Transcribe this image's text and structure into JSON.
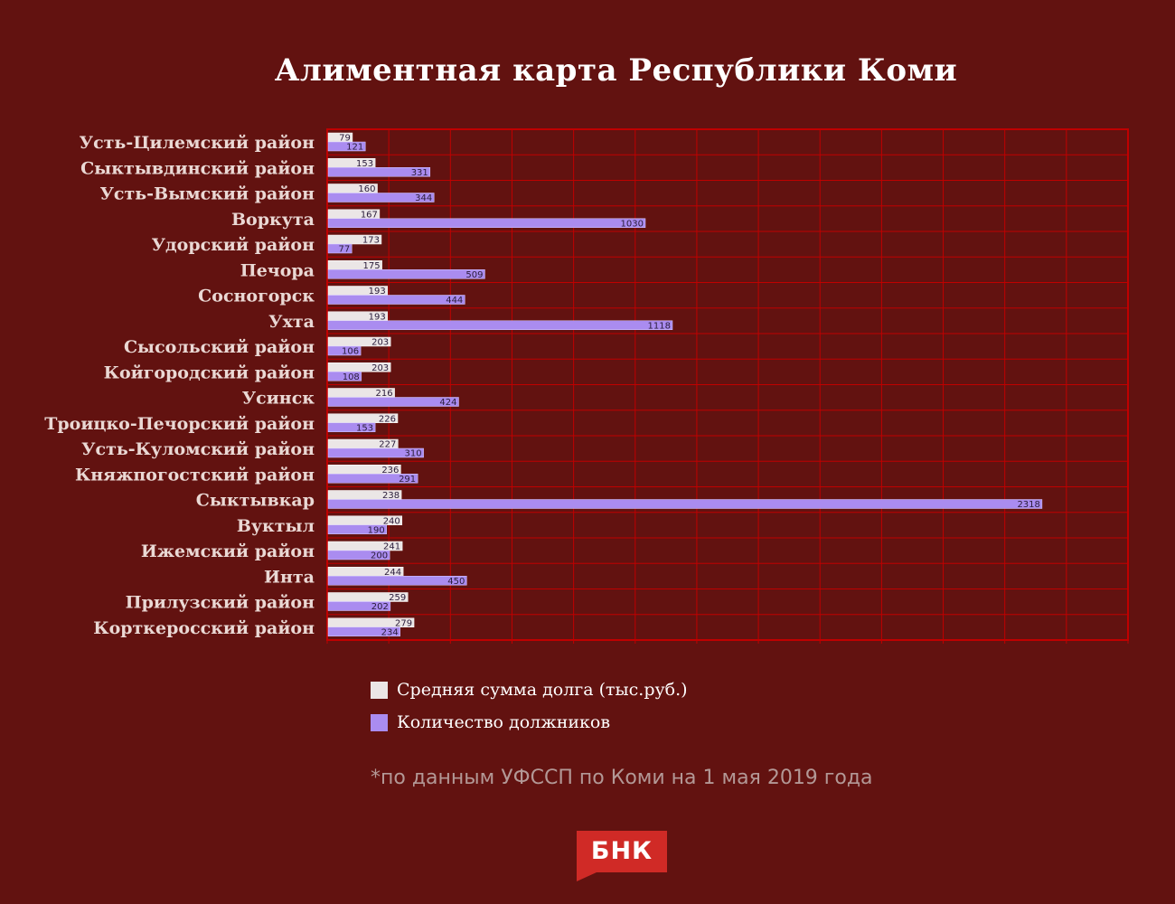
{
  "chart_data": {
    "type": "bar",
    "orientation": "horizontal",
    "title": "Алиментная карта Республики Коми",
    "categories": [
      "Усть-Цилемский район",
      "Сыктывдинский район",
      "Усть-Вымский район",
      "Воркута",
      "Удорский район",
      "Печора",
      "Сосногорск",
      "Ухта",
      "Сысольский район",
      "Койгородский район",
      "Усинск",
      "Троицко-Печорский район",
      "Усть-Куломский район",
      "Княжпогостский район",
      "Сыктывкар",
      "Вуктыл",
      "Ижемский район",
      "Инта",
      "Прилузский район",
      "Корткеросский район"
    ],
    "series": [
      {
        "name": "Средняя сумма долга (тыс.руб.)",
        "color": "#ebe6e6",
        "values": [
          79,
          153,
          160,
          167,
          173,
          175,
          193,
          193,
          203,
          203,
          216,
          226,
          227,
          236,
          238,
          240,
          241,
          244,
          259,
          279
        ]
      },
      {
        "name": "Количество должников",
        "color": "#aa8cf0",
        "values": [
          121,
          331,
          344,
          1030,
          77,
          509,
          444,
          1118,
          106,
          108,
          424,
          153,
          310,
          291,
          2318,
          190,
          200,
          450,
          202,
          234
        ]
      }
    ],
    "xlim": [
      0,
      2600
    ],
    "x_gridlines": 13,
    "grid": true,
    "legend_position": "bottom"
  },
  "note": "*по данным УФССП по Коми на 1 мая 2019 года",
  "logo": {
    "text": "БНК"
  },
  "colors": {
    "background": "#621210",
    "grid": "#c00000",
    "accent": "#d02a26"
  }
}
